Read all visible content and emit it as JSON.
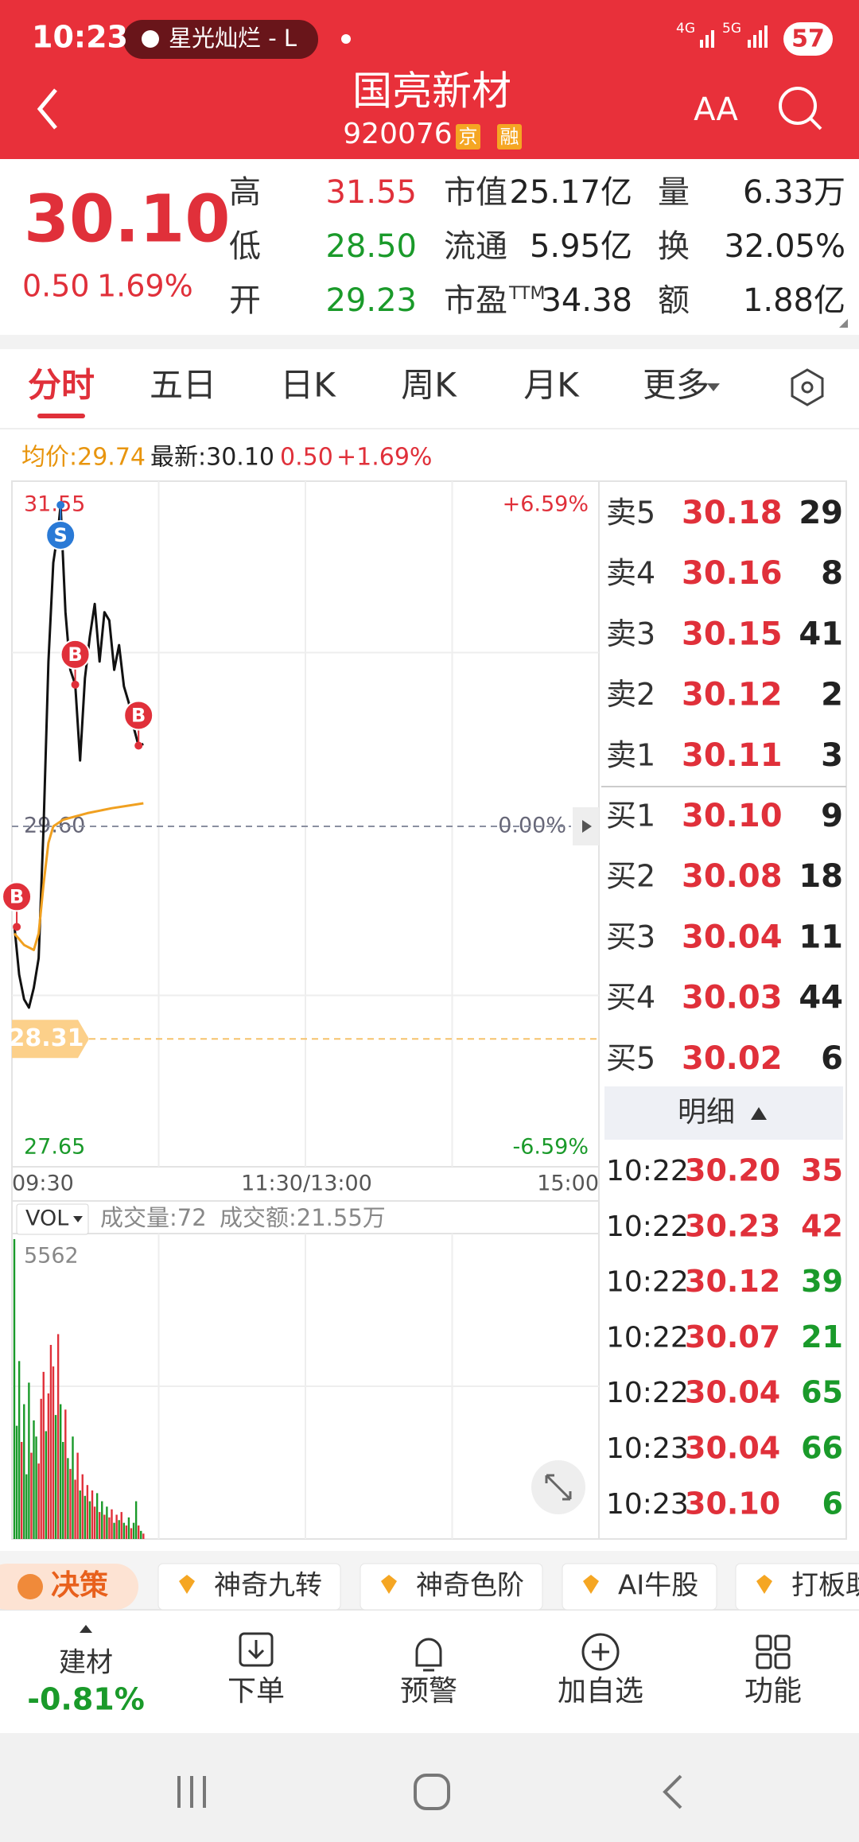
{
  "status_bar": {
    "time": "10:23",
    "media": "星光灿烂 - L",
    "network": [
      "4G",
      "5G"
    ],
    "battery": "57"
  },
  "header": {
    "title": "国亮新材",
    "code": "920076",
    "tags": [
      "京",
      "融"
    ],
    "font_icon": "AA"
  },
  "quote": {
    "price": "30.10",
    "change": "0.50",
    "change_pct": "1.69%",
    "stats": [
      {
        "label": "高",
        "value": "31.55",
        "color": "#e0303a"
      },
      {
        "label": "市值",
        "value": "25.17亿"
      },
      {
        "label": "量",
        "value": "6.33万"
      },
      {
        "label": "低",
        "value": "28.50",
        "color": "#1a9a2a"
      },
      {
        "label": "流通",
        "value": "5.95亿"
      },
      {
        "label": "换",
        "value": "32.05%"
      },
      {
        "label": "开",
        "value": "29.23",
        "color": "#1a9a2a"
      },
      {
        "label": "市盈",
        "sup": "TTM",
        "value": "34.38"
      },
      {
        "label": "额",
        "value": "1.88亿"
      }
    ]
  },
  "tabs": {
    "items": [
      "分时",
      "五日",
      "日K",
      "周K",
      "月K",
      "更多"
    ],
    "active": 0
  },
  "info": {
    "avg": "均价:29.74",
    "latest": "最新:30.10",
    "change": "0.50",
    "change_pct": "+1.69%"
  },
  "chart_data": [
    {
      "type": "line",
      "xlim": [
        0,
        240
      ],
      "ylim": [
        27.65,
        31.55
      ],
      "xticks": [
        {
          "value": 0,
          "label": "09:30"
        },
        {
          "value": 120,
          "label": "11:30/13:00"
        },
        {
          "value": 240,
          "label": "15:00"
        }
      ],
      "yticks": [
        31.55,
        {
          "value": 29.6,
          "label": "29.60"
        },
        27.65
      ],
      "pct_labels": [
        "+6.59%",
        "0.00%",
        "-6.59%"
      ],
      "highlight": 28.31,
      "series": [
        {
          "color": "#111111",
          "x": [
            0,
            2,
            4,
            6,
            8,
            10,
            12,
            14,
            16,
            18,
            19,
            21,
            23,
            25,
            27,
            29,
            31,
            33,
            35,
            37,
            39,
            41,
            43,
            45,
            47,
            49,
            51,
            53
          ],
          "values": [
            29.0,
            28.7,
            28.55,
            28.5,
            28.62,
            28.8,
            29.6,
            30.6,
            31.2,
            31.4,
            31.55,
            30.9,
            30.55,
            30.46,
            30.0,
            30.5,
            30.75,
            30.95,
            30.6,
            30.9,
            30.85,
            30.55,
            30.7,
            30.45,
            30.35,
            30.2,
            30.09,
            30.1
          ]
        },
        {
          "color": "#f0a020",
          "x": [
            0,
            4,
            8,
            10,
            12,
            14,
            16,
            20,
            30,
            40,
            53
          ],
          "values": [
            28.95,
            28.88,
            28.85,
            28.95,
            29.25,
            29.5,
            29.6,
            29.64,
            29.68,
            29.71,
            29.74
          ]
        }
      ],
      "markers": [
        {
          "label": "B",
          "x": 1,
          "y": 28.99,
          "color": "#e0303a"
        },
        {
          "label": "S",
          "x": 19,
          "y": 31.55,
          "color": "#2a7ad6"
        },
        {
          "label": "B",
          "x": 25,
          "y": 30.46,
          "color": "#e0303a"
        },
        {
          "label": "B",
          "x": 51,
          "y": 30.09,
          "color": "#e0303a"
        }
      ]
    },
    {
      "type": "bar",
      "selector": "VOL",
      "volume_label": "成交量:72",
      "amount_label": "成交额:21.55万",
      "ylim": [
        0,
        5562
      ],
      "yticks": [
        5562
      ],
      "values": [
        5562,
        2100,
        3300,
        1800,
        2500,
        1200,
        2900,
        1600,
        2200,
        1900,
        1400,
        2600,
        3100,
        2000,
        2700,
        3600,
        3200,
        2300,
        3800,
        2500,
        1800,
        2400,
        1500,
        1300,
        1900,
        1100,
        1600,
        900,
        1200,
        800,
        1000,
        700,
        900,
        600,
        850,
        500,
        700,
        450,
        600,
        400,
        550,
        300,
        450,
        350,
        500,
        300,
        250,
        400,
        200,
        300,
        700,
        250,
        150,
        100
      ],
      "colors": [
        "#1a9a2a",
        "#1a9a2a",
        "#1a9a2a",
        "#e0303a",
        "#1a9a2a",
        "#1a9a2a",
        "#1a9a2a",
        "#e0303a",
        "#1a9a2a",
        "#1a9a2a",
        "#e0303a",
        "#e0303a",
        "#e0303a",
        "#1a9a2a",
        "#e0303a",
        "#e0303a",
        "#e0303a",
        "#1a9a2a",
        "#e0303a",
        "#1a9a2a",
        "#1a9a2a",
        "#e0303a",
        "#1a9a2a",
        "#e0303a",
        "#1a9a2a",
        "#e0303a",
        "#e0303a",
        "#1a9a2a",
        "#e0303a",
        "#1a9a2a",
        "#e0303a",
        "#1a9a2a",
        "#e0303a",
        "#e0303a",
        "#1a9a2a",
        "#e0303a",
        "#1a9a2a",
        "#e0303a",
        "#1a9a2a",
        "#e0303a",
        "#e0303a",
        "#1a9a2a",
        "#e0303a",
        "#1a9a2a",
        "#e0303a",
        "#1a9a2a",
        "#e0303a",
        "#1a9a2a",
        "#e0303a",
        "#1a9a2a",
        "#1a9a2a",
        "#e0303a",
        "#1a9a2a",
        "#e0303a"
      ]
    }
  ],
  "order_book": {
    "rows": [
      {
        "label": "卖5",
        "price": "30.18",
        "volume": "29"
      },
      {
        "label": "卖4",
        "price": "30.16",
        "volume": "8"
      },
      {
        "label": "卖3",
        "price": "30.15",
        "volume": "41"
      },
      {
        "label": "卖2",
        "price": "30.12",
        "volume": "2"
      },
      {
        "label": "卖1",
        "price": "30.11",
        "volume": "3"
      },
      {
        "label": "买1",
        "price": "30.10",
        "volume": "9"
      },
      {
        "label": "买2",
        "price": "30.08",
        "volume": "18"
      },
      {
        "label": "买3",
        "price": "30.04",
        "volume": "11"
      },
      {
        "label": "买4",
        "price": "30.03",
        "volume": "44"
      },
      {
        "label": "买5",
        "price": "30.02",
        "volume": "6"
      }
    ]
  },
  "detail": {
    "title": "明细",
    "trades": [
      {
        "time": "10:22",
        "price": "30.20",
        "volume": "35",
        "color": "#e0303a"
      },
      {
        "time": "10:22",
        "price": "30.23",
        "volume": "42",
        "color": "#e0303a"
      },
      {
        "time": "10:22",
        "price": "30.12",
        "volume": "39",
        "color": "#1a9a2a"
      },
      {
        "time": "10:22",
        "price": "30.07",
        "volume": "21",
        "color": "#1a9a2a"
      },
      {
        "time": "10:22",
        "price": "30.04",
        "volume": "65",
        "color": "#1a9a2a"
      },
      {
        "time": "10:23",
        "price": "30.04",
        "volume": "66",
        "color": "#1a9a2a"
      },
      {
        "time": "10:23",
        "price": "30.10",
        "volume": "6",
        "color": "#1a9a2a"
      }
    ]
  },
  "chips": [
    "决策",
    "神奇九转",
    "神奇色阶",
    "AI牛股",
    "打板助手"
  ],
  "bottom_nav": {
    "sector": {
      "name": "建材",
      "change": "-0.81%"
    },
    "items": [
      "下单",
      "预警",
      "加自选",
      "功能"
    ]
  }
}
